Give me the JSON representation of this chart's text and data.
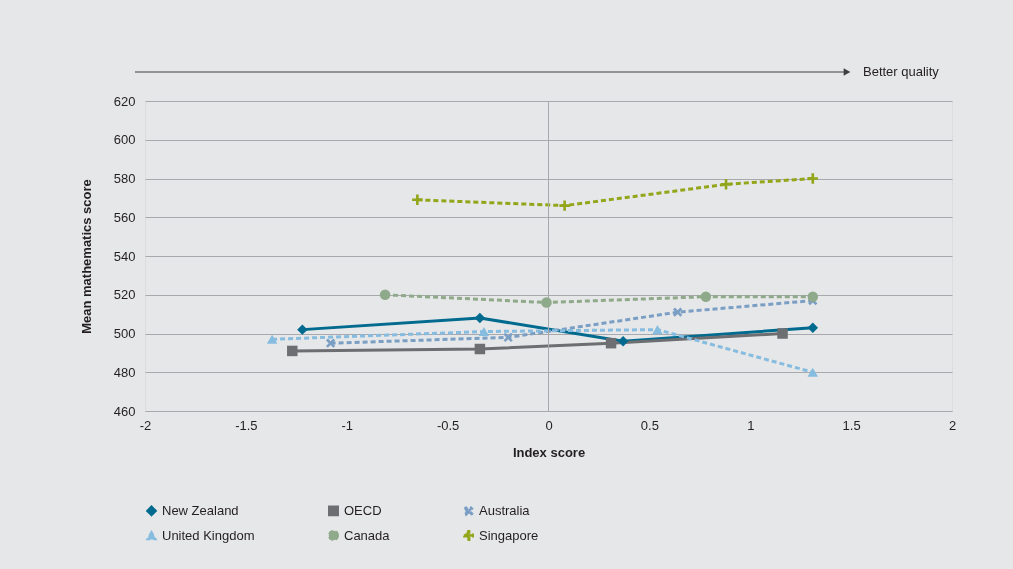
{
  "chart_data": {
    "type": "line",
    "xlabel": "Index score",
    "ylabel": "Mean mathematics score",
    "annotations": [
      "Better quality"
    ],
    "xlim": [
      -2,
      2
    ],
    "xticks": [
      -2,
      -1.5,
      -1,
      -0.5,
      0,
      0.5,
      1,
      1.5,
      2
    ],
    "ylim": [
      460,
      620
    ],
    "yticks": [
      460,
      480,
      500,
      520,
      540,
      560,
      580,
      600,
      620
    ],
    "grid": "y",
    "legend": "bottom",
    "ref_lines": [
      {
        "axis": "x",
        "value": 0,
        "color": "#a7a9ac"
      }
    ],
    "series": [
      {
        "name": "New Zealand",
        "color": "#006b8f",
        "marker": "diamond",
        "line_style": "solid",
        "x": [
          -1.22,
          -0.34,
          0.37,
          1.31
        ],
        "values": [
          502,
          508,
          496,
          503
        ]
      },
      {
        "name": "OECD",
        "color": "#6d6e71",
        "marker": "square",
        "line_style": "solid",
        "x": [
          -1.27,
          -0.34,
          0.31,
          1.16
        ],
        "values": [
          491,
          492,
          495,
          500
        ]
      },
      {
        "name": "Australia",
        "color": "#7a9ec4",
        "marker": "cross",
        "line_style": "dashed",
        "x": [
          -1.08,
          -0.2,
          0.64,
          1.31
        ],
        "values": [
          495,
          498,
          511,
          517
        ]
      },
      {
        "name": "United Kingdom",
        "color": "#86bce0",
        "marker": "triangle",
        "line_style": "dashed",
        "x": [
          -1.37,
          -0.32,
          0.54,
          1.31
        ],
        "values": [
          497,
          501,
          502,
          480
        ]
      },
      {
        "name": "Canada",
        "color": "#8faa8a",
        "marker": "circle",
        "line_style": "dashed",
        "x": [
          -0.81,
          -0.01,
          0.78,
          1.31
        ],
        "values": [
          520,
          516,
          519,
          519
        ]
      },
      {
        "name": "Singapore",
        "color": "#93a61a",
        "marker": "plus",
        "line_style": "dashed",
        "x": [
          -0.65,
          0.08,
          0.88,
          1.31
        ],
        "values": [
          569,
          566,
          577,
          580
        ]
      }
    ]
  }
}
